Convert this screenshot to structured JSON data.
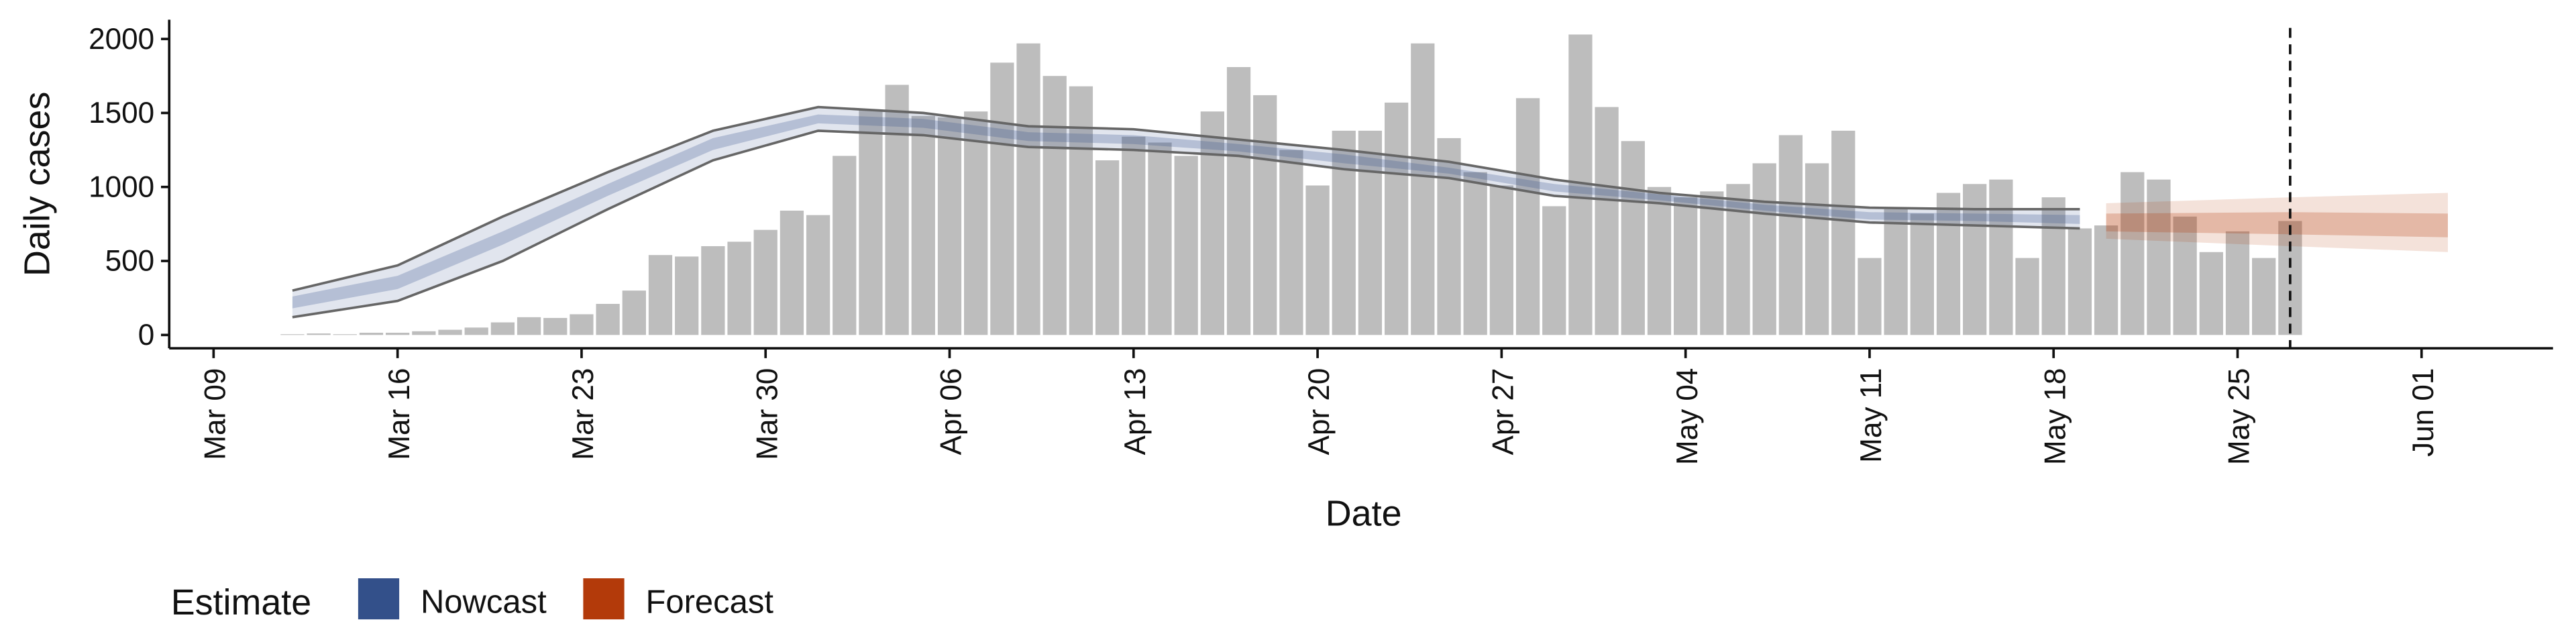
{
  "chart_data": {
    "type": "bar",
    "x_label": "Date",
    "y_label": "Daily cases",
    "xlim": [
      "Mar 07",
      "Jun 06"
    ],
    "xticks": [
      "Mar 09",
      "Mar 16",
      "Mar 23",
      "Mar 30",
      "Apr 06",
      "Apr 13",
      "Apr 20",
      "Apr 27",
      "May 04",
      "May 11",
      "May 18",
      "May 25",
      "Jun 01"
    ],
    "ylim": [
      -90,
      2130
    ],
    "yticks": [
      0,
      500,
      1000,
      1500,
      2000
    ],
    "bar_color": "#bdbdbd",
    "x": [
      "Mar 12",
      "Mar 13",
      "Mar 14",
      "Mar 15",
      "Mar 16",
      "Mar 17",
      "Mar 18",
      "Mar 19",
      "Mar 20",
      "Mar 21",
      "Mar 22",
      "Mar 23",
      "Mar 24",
      "Mar 25",
      "Mar 26",
      "Mar 27",
      "Mar 28",
      "Mar 29",
      "Mar 30",
      "Mar 31",
      "Apr 01",
      "Apr 02",
      "Apr 03",
      "Apr 04",
      "Apr 05",
      "Apr 06",
      "Apr 07",
      "Apr 08",
      "Apr 09",
      "Apr 10",
      "Apr 11",
      "Apr 12",
      "Apr 13",
      "Apr 14",
      "Apr 15",
      "Apr 16",
      "Apr 17",
      "Apr 18",
      "Apr 19",
      "Apr 20",
      "Apr 21",
      "Apr 22",
      "Apr 23",
      "Apr 24",
      "Apr 25",
      "Apr 26",
      "Apr 27",
      "Apr 28",
      "Apr 29",
      "Apr 30",
      "May 01",
      "May 02",
      "May 03",
      "May 04",
      "May 05",
      "May 06",
      "May 07",
      "May 08",
      "May 09",
      "May 10",
      "May 11",
      "May 12",
      "May 13",
      "May 14",
      "May 15",
      "May 16",
      "May 17",
      "May 18",
      "May 19",
      "May 20",
      "May 21",
      "May 22",
      "May 23",
      "May 24",
      "May 25",
      "May 26",
      "May 27"
    ],
    "values": [
      5,
      10,
      5,
      15,
      15,
      25,
      35,
      50,
      85,
      120,
      115,
      140,
      210,
      300,
      540,
      530,
      600,
      630,
      710,
      840,
      810,
      1210,
      1520,
      1690,
      1480,
      1470,
      1510,
      1840,
      1970,
      1750,
      1680,
      1180,
      1340,
      1300,
      1210,
      1510,
      1810,
      1620,
      1250,
      1010,
      1380,
      1380,
      1570,
      1970,
      1330,
      1100,
      1010,
      1600,
      870,
      2030,
      1540,
      1310,
      1000,
      930,
      970,
      1020,
      1160,
      1350,
      1160,
      1380,
      520,
      850,
      820,
      960,
      1020,
      1050,
      520,
      930,
      720,
      740,
      1100,
      1050,
      800,
      560,
      700,
      520,
      770
    ],
    "legend_title": "Estimate",
    "bands": [
      {
        "name": "Nowcast",
        "color": "#33508a",
        "x": [
          "Mar 12",
          "Mar 16",
          "Mar 20",
          "Mar 24",
          "Mar 28",
          "Apr 01",
          "Apr 05",
          "Apr 09",
          "Apr 13",
          "Apr 17",
          "Apr 21",
          "Apr 25",
          "Apr 29",
          "May 03",
          "May 07",
          "May 11",
          "May 15",
          "May 19"
        ],
        "lower_90": [
          120,
          230,
          500,
          850,
          1180,
          1380,
          1350,
          1270,
          1250,
          1210,
          1120,
          1060,
          940,
          890,
          820,
          760,
          740,
          720
        ],
        "upper_90": [
          300,
          470,
          800,
          1100,
          1380,
          1540,
          1500,
          1410,
          1390,
          1320,
          1250,
          1170,
          1050,
          960,
          900,
          860,
          850,
          850
        ],
        "lower_50": [
          180,
          310,
          610,
          940,
          1250,
          1430,
          1400,
          1310,
          1290,
          1240,
          1160,
          1090,
          970,
          910,
          840,
          780,
          770,
          750
        ],
        "upper_50": [
          260,
          400,
          700,
          1020,
          1330,
          1490,
          1460,
          1370,
          1350,
          1290,
          1220,
          1130,
          1020,
          950,
          880,
          830,
          820,
          810
        ]
      },
      {
        "name": "Forecast",
        "color": "#b33a0a",
        "x": [
          "May 20",
          "May 27",
          "Jun 02"
        ],
        "lower_90": [
          650,
          600,
          560
        ],
        "upper_90": [
          890,
          930,
          960
        ],
        "lower_50": [
          700,
          680,
          660
        ],
        "upper_50": [
          820,
          830,
          820
        ]
      }
    ],
    "vline": "May 27"
  }
}
